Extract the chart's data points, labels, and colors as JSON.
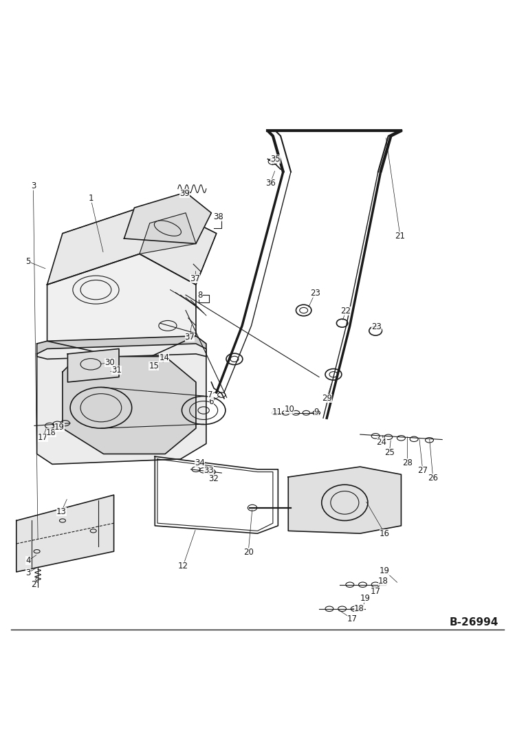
{
  "background_color": "#ffffff",
  "watermark": "B-26994",
  "line_color": "#1a1a1a",
  "text_color": "#1a1a1a",
  "label_fontsize": 8.5
}
